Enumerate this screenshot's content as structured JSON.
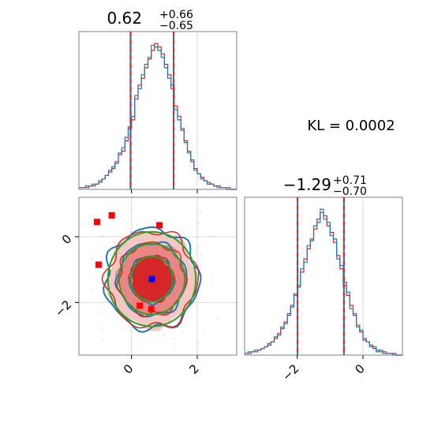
{
  "kl_annotation": "KL = 0.0002",
  "colors": {
    "blue": "#1f77b4",
    "red": "#d62728",
    "green": "#2ca02c",
    "marker_blue": "#0000ff",
    "marker_red": "#ff0000",
    "grid": "#d9d9d9",
    "frame": "#7f7f7f"
  },
  "chart_data": [
    {
      "type": "histogram",
      "panel": "param-1-marginal",
      "title": {
        "median": "0.62",
        "plus": "+0.66",
        "minus": "−0.65"
      },
      "xlim": [
        -1.6,
        3.2
      ],
      "x_ticks": [
        0,
        2
      ],
      "quantile_lines": [
        -0.03,
        0.62,
        1.28
      ],
      "bin_width": 0.1,
      "series": [
        {
          "name": "",
          "color": "#d62728",
          "values": [
            1,
            1,
            1,
            2,
            2,
            3,
            4,
            6,
            8,
            10,
            12,
            16,
            20,
            22,
            28,
            36,
            40,
            52,
            60,
            64,
            70,
            75,
            80,
            84,
            82,
            78,
            72,
            66,
            58,
            48,
            42,
            34,
            28,
            22,
            16,
            12,
            9,
            7,
            5,
            4,
            3,
            2,
            2,
            1,
            1,
            1,
            0,
            0
          ]
        },
        {
          "name": "",
          "color": "#1f77b4",
          "values": [
            1,
            1,
            2,
            2,
            3,
            3,
            5,
            6,
            8,
            11,
            13,
            15,
            21,
            24,
            30,
            35,
            42,
            54,
            58,
            66,
            72,
            76,
            83,
            82,
            80,
            76,
            70,
            64,
            60,
            46,
            40,
            35,
            27,
            21,
            17,
            11,
            9,
            6,
            5,
            3,
            3,
            2,
            1,
            1,
            1,
            0,
            0,
            0
          ]
        }
      ]
    },
    {
      "type": "histogram",
      "panel": "param-2-marginal",
      "title": {
        "median": "−1.29",
        "plus": "+0.71",
        "minus": "−0.70"
      },
      "xlim": [
        -3.6,
        1.2
      ],
      "x_ticks": [
        -2,
        0
      ],
      "quantile_lines": [
        -1.99,
        -1.29,
        -0.58
      ],
      "bin_width": 0.1,
      "series": [
        {
          "name": "",
          "color": "#d62728",
          "values": [
            1,
            1,
            2,
            2,
            3,
            4,
            5,
            6,
            8,
            10,
            13,
            16,
            20,
            24,
            30,
            36,
            42,
            50,
            58,
            64,
            70,
            76,
            82,
            86,
            84,
            78,
            74,
            68,
            60,
            52,
            44,
            36,
            30,
            24,
            18,
            14,
            10,
            8,
            6,
            4,
            3,
            2,
            2,
            1,
            1,
            1,
            0,
            0
          ]
        },
        {
          "name": "",
          "color": "#1f77b4",
          "values": [
            1,
            2,
            2,
            3,
            3,
            4,
            5,
            7,
            8,
            11,
            12,
            17,
            19,
            25,
            29,
            37,
            41,
            52,
            56,
            66,
            69,
            78,
            80,
            88,
            82,
            80,
            72,
            70,
            58,
            54,
            42,
            38,
            28,
            25,
            17,
            15,
            9,
            8,
            5,
            5,
            2,
            3,
            1,
            1,
            1,
            0,
            0,
            0
          ]
        }
      ]
    },
    {
      "type": "contour",
      "panel": "param-1-vs-param-2",
      "xlim": [
        -1.6,
        3.2
      ],
      "ylim": [
        -3.6,
        1.2
      ],
      "x_ticks": [
        0,
        2
      ],
      "y_ticks": [
        0,
        -2
      ],
      "center": [
        0.62,
        -1.29
      ],
      "sigma": [
        0.65,
        0.7
      ],
      "levels_sigma": [
        1.0,
        1.6,
        2.1
      ],
      "blue_marker": [
        0.62,
        -1.29
      ],
      "red_markers": [
        [
          -1.05,
          0.45
        ],
        [
          -0.6,
          0.65
        ],
        [
          0.85,
          0.35
        ],
        [
          -1.0,
          -0.85
        ],
        [
          0.25,
          -2.1
        ],
        [
          0.6,
          -2.2
        ]
      ]
    }
  ]
}
